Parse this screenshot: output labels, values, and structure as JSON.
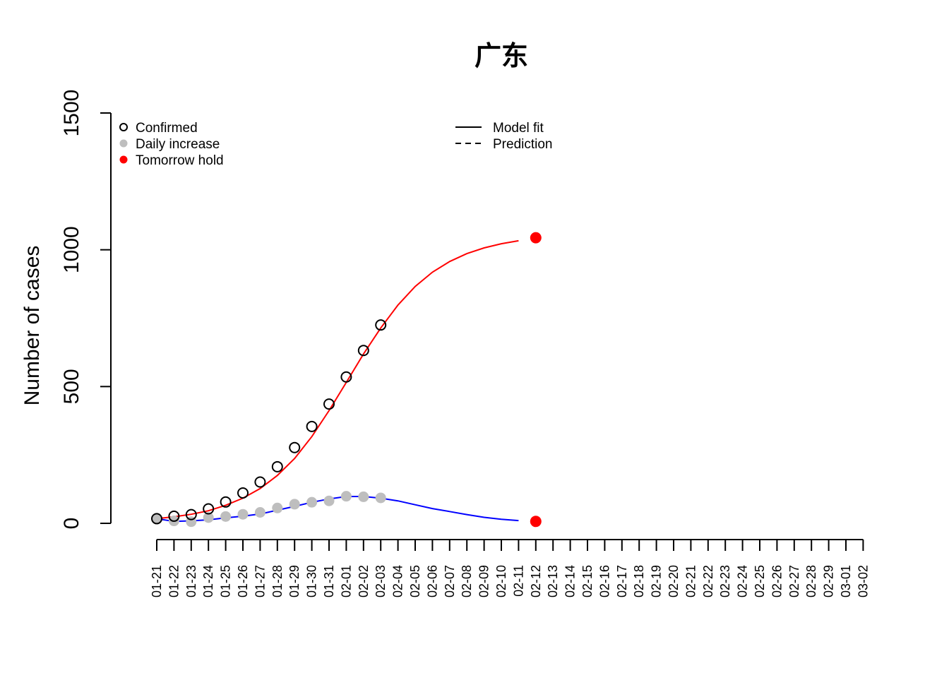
{
  "chart_data": {
    "type": "line",
    "title": "广东",
    "ylabel": "Number of cases",
    "xlabel": "",
    "ylim": [
      0,
      1500
    ],
    "y_ticks": [
      0,
      500,
      1000,
      1500
    ],
    "x_tick_labels": [
      "01-21",
      "01-22",
      "01-23",
      "01-24",
      "01-25",
      "01-26",
      "01-27",
      "01-28",
      "01-29",
      "01-30",
      "01-31",
      "02-01",
      "02-02",
      "02-03",
      "02-04",
      "02-05",
      "02-06",
      "02-07",
      "02-08",
      "02-09",
      "02-10",
      "02-11",
      "02-12",
      "02-13",
      "02-14",
      "02-15",
      "02-16",
      "02-17",
      "02-18",
      "02-19",
      "02-20",
      "02-21",
      "02-22",
      "02-23",
      "02-24",
      "02-25",
      "02-26",
      "02-27",
      "02-28",
      "02-29",
      "03-01",
      "03-02"
    ],
    "legend_points": [
      {
        "label": "Confirmed",
        "marker": "open-circle",
        "color": "#000000"
      },
      {
        "label": "Daily increase",
        "marker": "filled-circle",
        "color": "#bebebe"
      },
      {
        "label": "Tomorrow hold",
        "marker": "filled-circle",
        "color": "#ff0000"
      }
    ],
    "legend_lines": [
      {
        "label": "Model fit",
        "style": "solid"
      },
      {
        "label": "Prediction",
        "style": "dashed"
      }
    ],
    "series": [
      {
        "kind": "points",
        "marker": "open-circle",
        "color": "#000000",
        "x": [
          "01-21",
          "01-22",
          "01-23",
          "01-24",
          "01-25",
          "01-26",
          "01-27",
          "01-28",
          "01-29",
          "01-30",
          "01-31",
          "02-01",
          "02-02",
          "02-03"
        ],
        "values": [
          17,
          26,
          32,
          53,
          78,
          111,
          151,
          207,
          277,
          354,
          436,
          535,
          632,
          725
        ]
      },
      {
        "kind": "points",
        "marker": "filled-circle",
        "color": "#bebebe",
        "x": [
          "01-21",
          "01-22",
          "01-23",
          "01-24",
          "01-25",
          "01-26",
          "01-27",
          "01-28",
          "01-29",
          "01-30",
          "01-31",
          "02-01",
          "02-02",
          "02-03"
        ],
        "values": [
          17,
          9,
          6,
          21,
          25,
          33,
          40,
          56,
          70,
          77,
          82,
          99,
          97,
          93
        ]
      },
      {
        "kind": "line",
        "style": "solid",
        "color": "#ff0000",
        "x": [
          "01-21",
          "01-22",
          "01-23",
          "01-24",
          "01-25",
          "01-26",
          "01-27",
          "01-28",
          "01-29",
          "01-30",
          "01-31",
          "02-01",
          "02-02",
          "02-03",
          "02-04",
          "02-05",
          "02-06",
          "02-07",
          "02-08",
          "02-09",
          "02-10",
          "02-11"
        ],
        "values": [
          17,
          24,
          33,
          46,
          66,
          92,
          127,
          175,
          237,
          317,
          412,
          515,
          619,
          714,
          798,
          866,
          918,
          957,
          986,
          1007,
          1022,
          1033
        ]
      },
      {
        "kind": "line",
        "style": "solid",
        "color": "#0000ff",
        "x": [
          "01-21",
          "01-22",
          "01-23",
          "01-24",
          "01-25",
          "01-26",
          "01-27",
          "01-28",
          "01-29",
          "01-30",
          "01-31",
          "02-01",
          "02-02",
          "02-03",
          "02-04",
          "02-05",
          "02-06",
          "02-07",
          "02-08",
          "02-09",
          "02-10",
          "02-11"
        ],
        "values": [
          17,
          7,
          9,
          13,
          20,
          26,
          34,
          48,
          62,
          77,
          89,
          98,
          98,
          92,
          82,
          68,
          54,
          43,
          32,
          22,
          15,
          10
        ]
      },
      {
        "kind": "points",
        "marker": "filled-circle",
        "color": "#ff0000",
        "x": [
          "02-12",
          "02-12"
        ],
        "values": [
          1044,
          7
        ]
      }
    ]
  }
}
